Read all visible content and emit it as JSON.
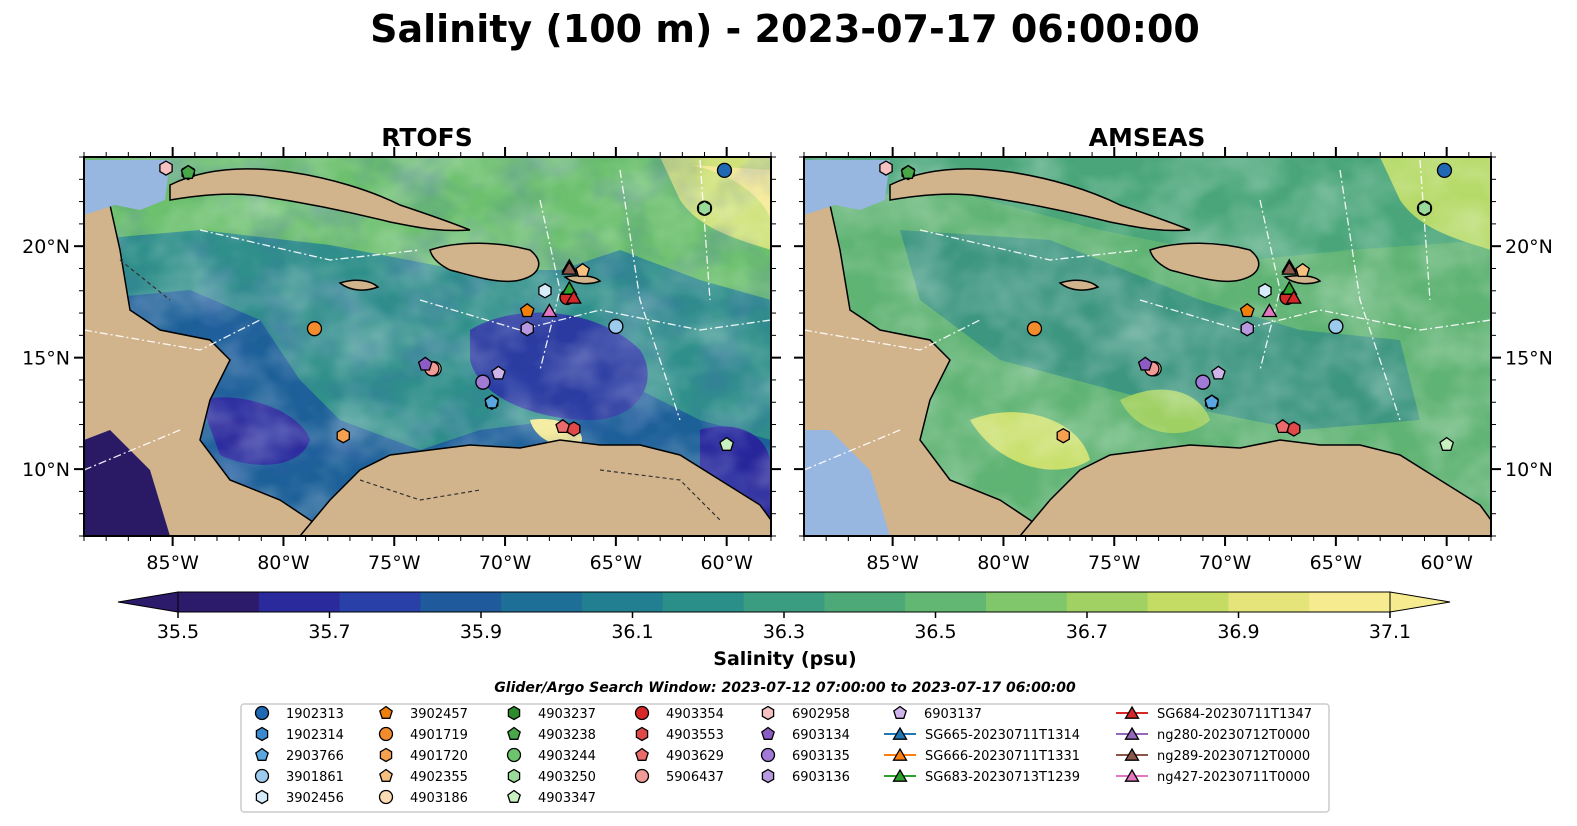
{
  "figure": {
    "title": "Salinity (100 m) - 2023-07-17 06:00:00",
    "colors": {
      "land": "#d2b48c",
      "ocean_masked": "#97b6e0",
      "coast": "#000000"
    }
  },
  "chart_data": [
    {
      "type": "heatmap",
      "title": "RTOFS",
      "xlim": [
        -89,
        -58
      ],
      "ylim": [
        7,
        24
      ],
      "x_ticks": [
        "85°W",
        "80°W",
        "75°W",
        "70°W",
        "65°W",
        "60°W"
      ],
      "y_ticks": [
        "10°N",
        "15°N",
        "20°N"
      ],
      "dominant_levels": "lower salinity (35.5–36.2) in central/southwest Caribbean, higher (36.6–37.1) near Atlantic north-east"
    },
    {
      "type": "heatmap",
      "title": "AMSEAS",
      "xlim": [
        -89,
        -58
      ],
      "ylim": [
        7,
        24
      ],
      "x_ticks": [
        "85°W",
        "80°W",
        "75°W",
        "70°W",
        "65°W",
        "60°W"
      ],
      "y_ticks": [
        "10°N",
        "15°N",
        "20°N"
      ],
      "dominant_levels": "mostly 36.3–36.8 across basin, higher (37.0) near Colombia and north-east"
    }
  ],
  "colorbar": {
    "label": "Salinity (psu)",
    "min": 35.5,
    "max": 37.1,
    "ticks": [
      "35.5",
      "35.7",
      "35.9",
      "36.1",
      "36.3",
      "36.5",
      "36.7",
      "36.9",
      "37.1"
    ],
    "colors": [
      "#2c1a6b",
      "#2a2a9c",
      "#2940a8",
      "#1f5a9d",
      "#1e6f97",
      "#227f91",
      "#2a8f88",
      "#3a9c80",
      "#4daa78",
      "#62b873",
      "#80c66a",
      "#a2d163",
      "#c4dc63",
      "#e5e47a",
      "#f6eb8f"
    ]
  },
  "search_window": "Glider/Argo Search Window: 2023-07-12 07:00:00 to 2023-07-17 06:00:00",
  "observations": [
    {
      "id": "1902313",
      "lon": -60.1,
      "lat": 23.4,
      "marker": "circle",
      "color": "#1f68b4"
    },
    {
      "id": "1902314",
      "lon": -70.6,
      "lat": 13.0,
      "marker": "hexagon",
      "color": "#3a8ad0"
    },
    {
      "id": "2903766",
      "lon": -70.6,
      "lat": 13.0,
      "marker": "pentagon",
      "color": "#5aa6e0"
    },
    {
      "id": "3901861",
      "lon": -65.0,
      "lat": 16.4,
      "marker": "circle",
      "color": "#9ccbee"
    },
    {
      "id": "3902456",
      "lon": -68.2,
      "lat": 18.0,
      "marker": "hexagon",
      "color": "#d6ecfa"
    },
    {
      "id": "3902457",
      "lon": -69.0,
      "lat": 17.1,
      "marker": "pentagon",
      "color": "#f07f0c"
    },
    {
      "id": "4901719",
      "lon": -78.6,
      "lat": 16.3,
      "marker": "circle",
      "color": "#f28b2c"
    },
    {
      "id": "4901720",
      "lon": -77.3,
      "lat": 11.5,
      "marker": "hexagon",
      "color": "#f5a04e"
    },
    {
      "id": "4902355",
      "lon": -66.5,
      "lat": 18.9,
      "marker": "pentagon",
      "color": "#f7c07f"
    },
    {
      "id": "4903186",
      "lon": -73.2,
      "lat": 14.5,
      "marker": "circle",
      "color": "#fbdcb3"
    },
    {
      "id": "4903237",
      "lon": -84.3,
      "lat": 23.3,
      "marker": "hexagon",
      "color": "#2a8c2a"
    },
    {
      "id": "4903238",
      "lon": -84.3,
      "lat": 23.3,
      "marker": "pentagon",
      "color": "#48a848"
    },
    {
      "id": "4903244",
      "lon": -61.0,
      "lat": 21.7,
      "marker": "circle",
      "color": "#6cc56c"
    },
    {
      "id": "4903250",
      "lon": -61.0,
      "lat": 21.7,
      "marker": "hexagon",
      "color": "#99dc99"
    },
    {
      "id": "4903347",
      "lon": -60.0,
      "lat": 11.1,
      "marker": "pentagon",
      "color": "#c8f0c0"
    },
    {
      "id": "4903354",
      "lon": -67.2,
      "lat": 17.7,
      "marker": "circle",
      "color": "#d62728"
    },
    {
      "id": "4903553",
      "lon": -66.9,
      "lat": 11.8,
      "marker": "hexagon",
      "color": "#e14848"
    },
    {
      "id": "4903629",
      "lon": -67.4,
      "lat": 11.9,
      "marker": "pentagon",
      "color": "#eb6a6a"
    },
    {
      "id": "5906437",
      "lon": -73.3,
      "lat": 14.5,
      "marker": "circle",
      "color": "#f29a96"
    },
    {
      "id": "6902958",
      "lon": -85.3,
      "lat": 23.5,
      "marker": "hexagon",
      "color": "#f7c1c1"
    },
    {
      "id": "6903134",
      "lon": -73.6,
      "lat": 14.7,
      "marker": "pentagon",
      "color": "#8c5bc3"
    },
    {
      "id": "6903135",
      "lon": -71.0,
      "lat": 13.9,
      "marker": "circle",
      "color": "#a07ad4"
    },
    {
      "id": "6903136",
      "lon": -69.0,
      "lat": 16.3,
      "marker": "hexagon",
      "color": "#b899e0"
    },
    {
      "id": "6903137",
      "lon": -70.3,
      "lat": 14.3,
      "marker": "pentagon",
      "color": "#cfb5ec"
    },
    {
      "id": "SG665-20230711T1314",
      "lon": -67.1,
      "lat": 18.1,
      "marker": "triangle",
      "color": "#1f77b4",
      "line": true
    },
    {
      "id": "SG666-20230711T1331",
      "lon": -67.1,
      "lat": 18.1,
      "marker": "triangle",
      "color": "#ff7f0e",
      "line": true
    },
    {
      "id": "SG683-20230713T1239",
      "lon": -67.1,
      "lat": 18.1,
      "marker": "triangle",
      "color": "#2ca02c",
      "line": true
    },
    {
      "id": "SG684-20230711T1347",
      "lon": -66.9,
      "lat": 17.7,
      "marker": "triangle",
      "color": "#d62728",
      "line": true
    },
    {
      "id": "ng280-20230712T0000",
      "lon": -67.1,
      "lat": 19.1,
      "marker": "triangle",
      "color": "#9467bd",
      "line": true
    },
    {
      "id": "ng289-20230712T0000",
      "lon": -67.1,
      "lat": 19.0,
      "marker": "triangle",
      "color": "#8c564b",
      "line": true
    },
    {
      "id": "ng427-20230711T0000",
      "lon": -68.0,
      "lat": 17.1,
      "marker": "triangle",
      "color": "#e377c2",
      "line": true
    }
  ]
}
